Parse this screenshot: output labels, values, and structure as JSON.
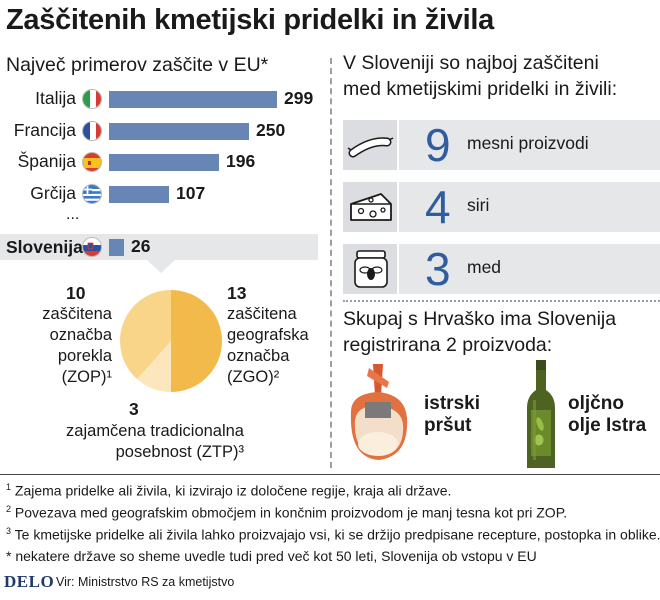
{
  "title": "Zaščitenih kmetijski pridelki in živila",
  "left_heading": "Največ primerov zaščite v EU*",
  "ellipsis": "...",
  "colors": {
    "bar": "#6786b6",
    "pie_pdo": "#f9d58a",
    "pie_pgi": "#f2b94b",
    "pie_tsg": "#fbe6bd",
    "number": "#2f5d9e"
  },
  "chart_data": [
    {
      "type": "bar",
      "categories": [
        "Italija",
        "Francija",
        "Španija",
        "Grčija",
        "Slovenija"
      ],
      "values": [
        299,
        250,
        196,
        107,
        26
      ],
      "flags": [
        "italy-flag",
        "france-flag",
        "spain-flag",
        "greece-flag",
        "slovenia-flag"
      ]
    },
    {
      "type": "pie",
      "slices": [
        {
          "value": 10,
          "label": "zaščitena označba porekla (ZOP)",
          "lines": [
            "zaščitena",
            "označba",
            "porekla",
            "(ZOP)¹"
          ]
        },
        {
          "value": 13,
          "label": "zaščitena geografska označba (ZGO)",
          "lines": [
            "zaščitena",
            "geografska",
            "označba",
            "(ZGO)²"
          ]
        },
        {
          "value": 3,
          "label": "zajamčena tradicionalna posebnost (ZTP)",
          "lines": [
            "zajamčena tradicionalna",
            "posebnost (ZTP)³"
          ]
        }
      ]
    }
  ],
  "right_heading": [
    "V Sloveniji so najboj zaščiteni",
    "med kmetijskimi pridelki in živili:"
  ],
  "top_products": [
    {
      "icon": "sausage-icon",
      "count": "9",
      "label": "mesni proizvodi"
    },
    {
      "icon": "cheese-icon",
      "count": "4",
      "label": "siri"
    },
    {
      "icon": "honey-jar-icon",
      "count": "3",
      "label": "med"
    }
  ],
  "croatia_heading": [
    "Skupaj s Hrvaško ima Slovenija",
    "registrirana 2 proizvoda:"
  ],
  "shared_products": [
    {
      "icon": "prosciutto-icon",
      "lines": [
        "istrski",
        "pršut"
      ]
    },
    {
      "icon": "olive-oil-bottle-icon",
      "lines": [
        "oljčno",
        "olje Istra"
      ]
    }
  ],
  "footnotes": [
    {
      "mark": "1",
      "text": "Zajema pridelke ali živila, ki izvirajo iz določene regije, kraja ali države."
    },
    {
      "mark": "2",
      "text": "Povezava med geografskim območjem in končnim proizvodom je manj tesna kot pri ZOP."
    },
    {
      "mark": "3",
      "text": "Te kmetijske pridelke ali živila lahko proizvajajo vsi, ki se držijo predpisane recepture, postopka in oblike."
    },
    {
      "mark": "*",
      "text": "nekatere države so sheme uvedle tudi pred več kot 50 leti, Slovenija ob vstopu v EU"
    }
  ],
  "logo": "DELO",
  "source": "Vir: Ministrstvo RS za kmetijstvo"
}
